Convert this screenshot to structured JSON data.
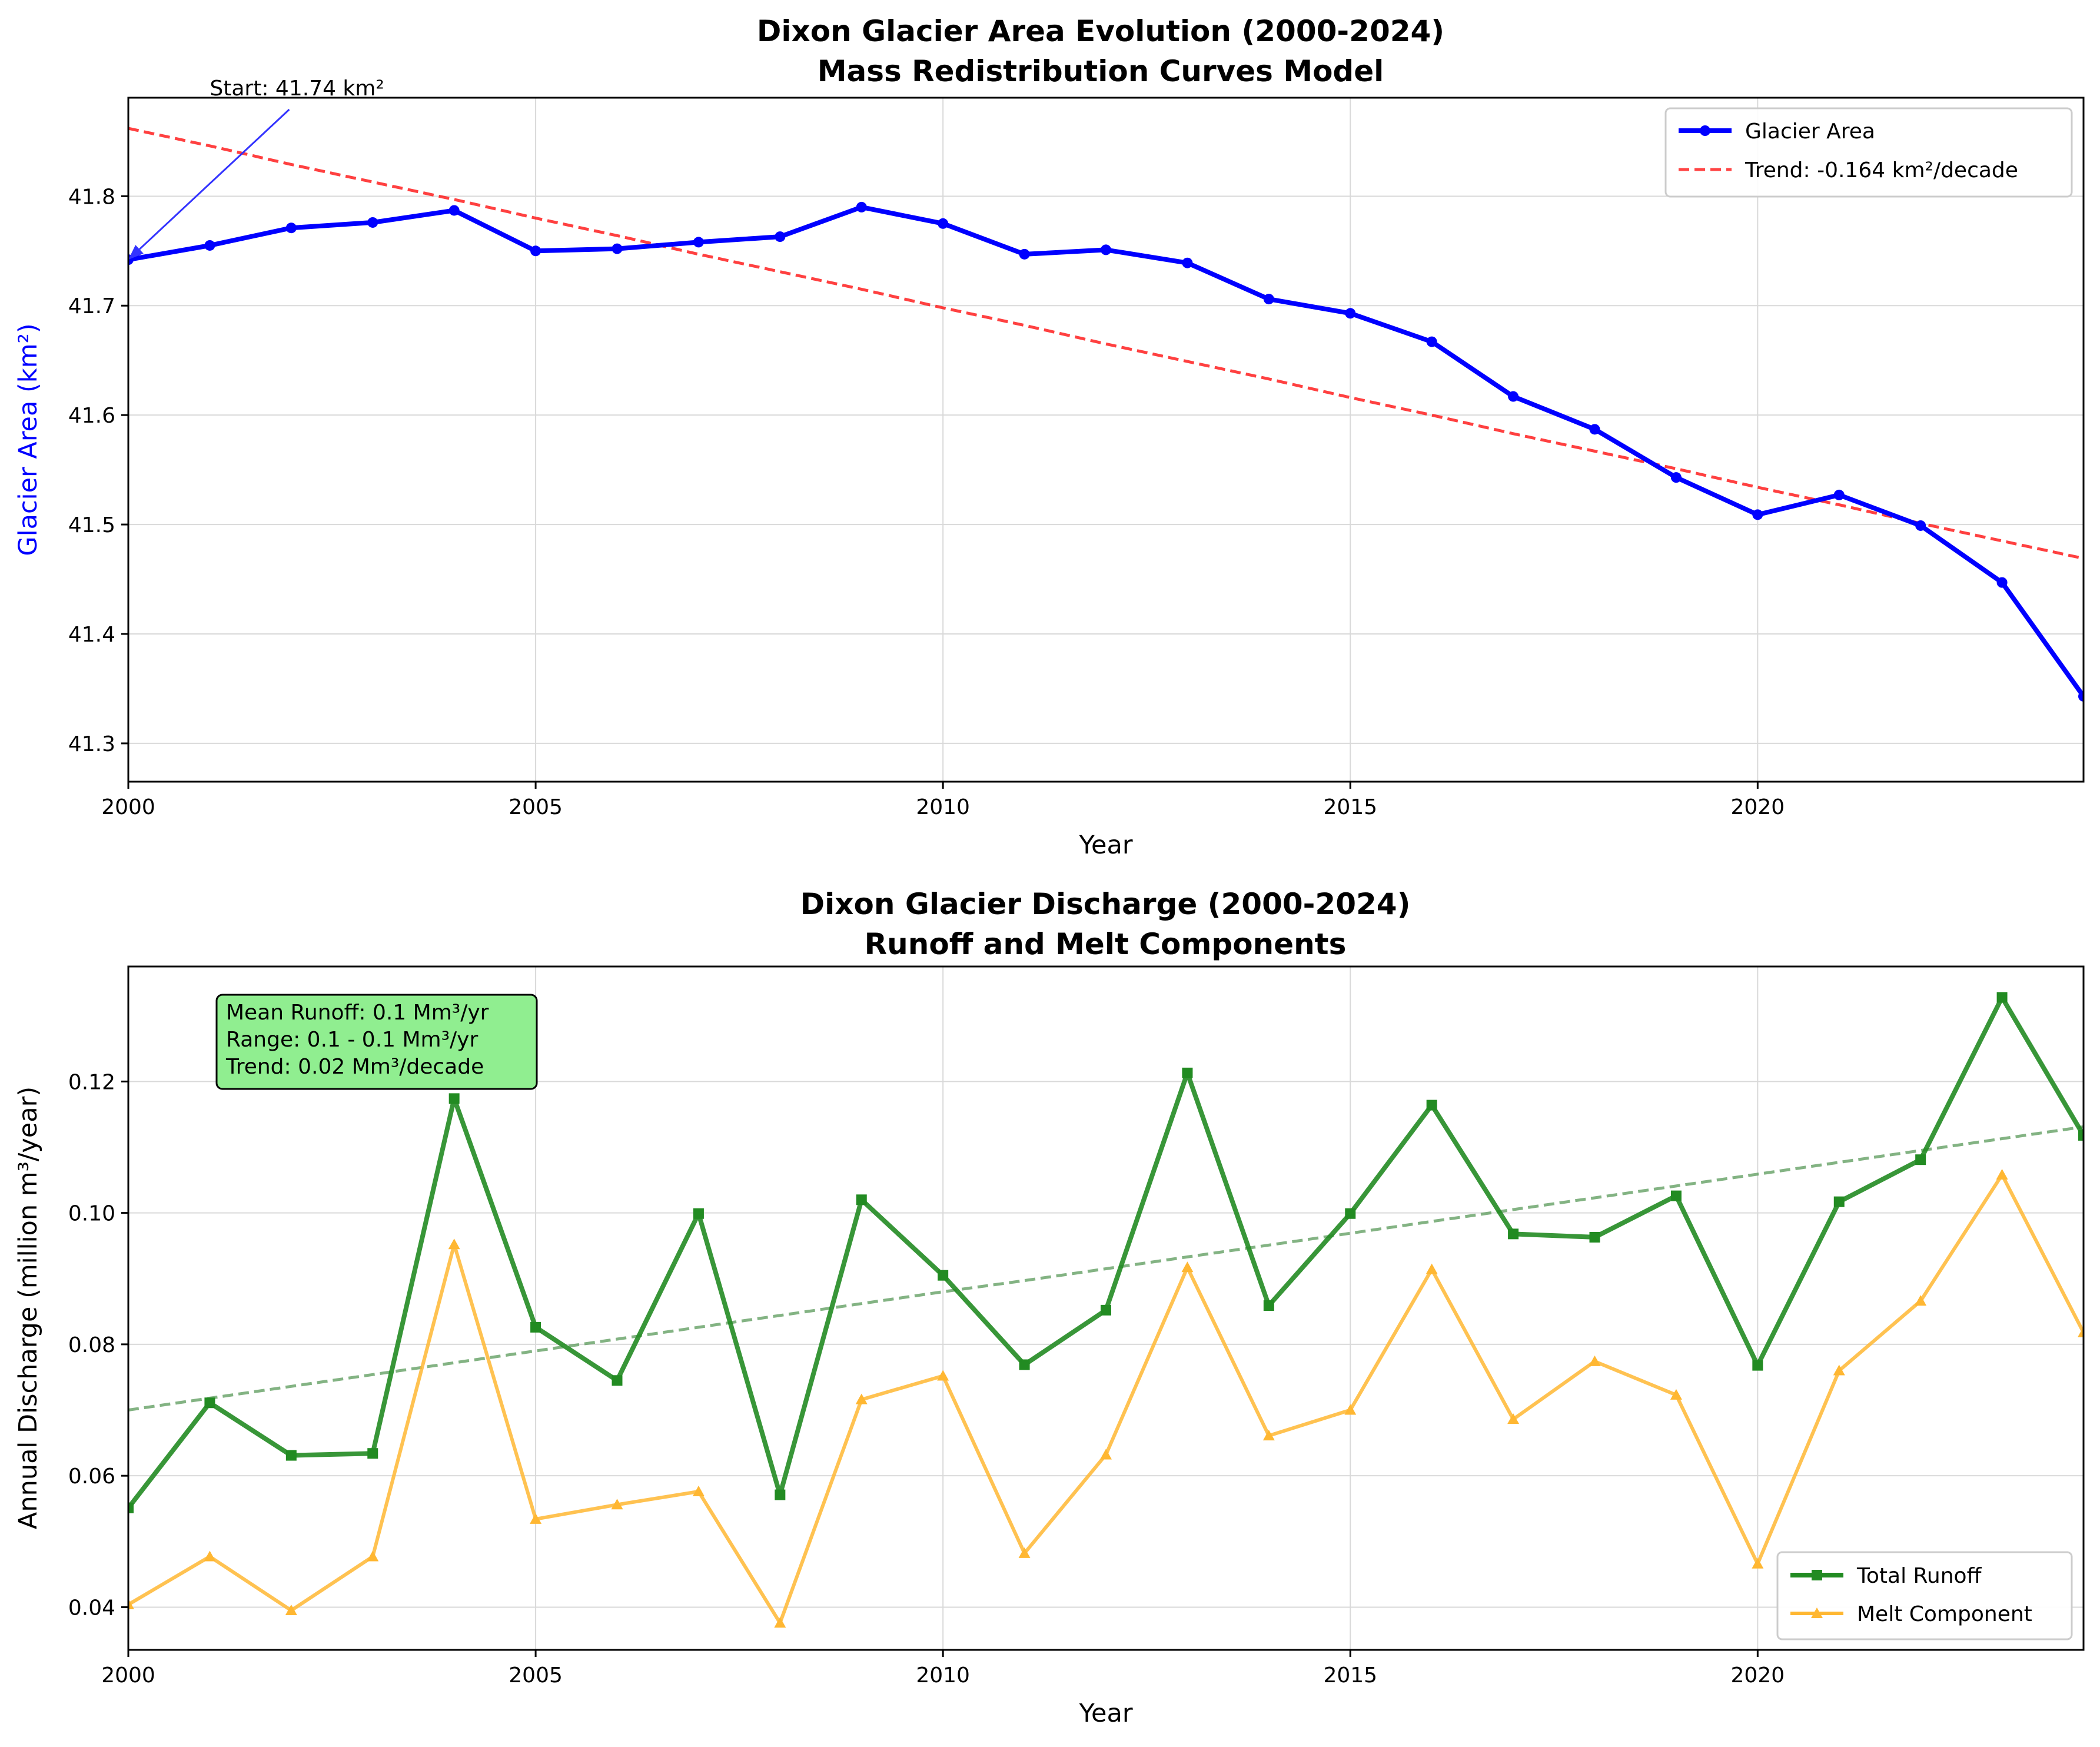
{
  "chart_data": [
    {
      "type": "line",
      "title": "Dixon Glacier Area Evolution (2000-2024)",
      "subtitle": "Mass Redistribution Curves Model",
      "xlabel": "Year",
      "ylabel": "Glacier Area (km²)",
      "xlim": [
        2000,
        2024
      ],
      "ylim": [
        41.265,
        41.89
      ],
      "x_ticks": [
        "2000",
        "2005",
        "2010",
        "2015",
        "2020"
      ],
      "y_ticks": [
        "41.3",
        "41.4",
        "41.5",
        "41.6",
        "41.7",
        "41.8"
      ],
      "grid": true,
      "legend_position": "top-right",
      "x": [
        2000,
        2001,
        2002,
        2003,
        2004,
        2005,
        2006,
        2007,
        2008,
        2009,
        2010,
        2011,
        2012,
        2013,
        2014,
        2015,
        2016,
        2017,
        2018,
        2019,
        2020,
        2021,
        2022,
        2023,
        2024
      ],
      "series": [
        {
          "name": "Glacier Area",
          "color": "#0000ff",
          "style": "solid-circle-markers",
          "values": [
            41.742,
            41.755,
            41.771,
            41.776,
            41.787,
            41.75,
            41.752,
            41.758,
            41.763,
            41.79,
            41.775,
            41.747,
            41.751,
            41.739,
            41.706,
            41.693,
            41.667,
            41.617,
            41.587,
            41.543,
            41.509,
            41.527,
            41.499,
            41.447,
            41.343
          ]
        },
        {
          "name": "Trend: -0.164 km²/decade",
          "color": "#ff0000",
          "style": "dashed",
          "values": [
            41.862,
            41.846,
            41.829,
            41.813,
            41.797,
            41.78,
            41.764,
            41.747,
            41.731,
            41.715,
            41.698,
            41.682,
            41.665,
            41.649,
            41.633,
            41.616,
            41.6,
            41.583,
            41.567,
            41.551,
            41.534,
            41.518,
            41.501,
            41.485,
            41.469
          ]
        }
      ],
      "annotations": [
        {
          "text": "Start: 41.74 km²",
          "x": 2000,
          "y": 41.742,
          "text_x": 2001,
          "text_y": 41.89,
          "arrow_color": "#3333ff"
        }
      ]
    },
    {
      "type": "line",
      "title": "Dixon Glacier Discharge (2000-2024)",
      "subtitle": "Runoff and Melt Components",
      "xlabel": "Year",
      "ylabel": "Annual Discharge (million m³/year)",
      "xlim": [
        2000,
        2024
      ],
      "ylim": [
        0.0335,
        0.1375
      ],
      "x_ticks": [
        "2000",
        "2005",
        "2010",
        "2015",
        "2020"
      ],
      "y_ticks": [
        "0.04",
        "0.06",
        "0.08",
        "0.10",
        "0.12"
      ],
      "grid": true,
      "legend_position": "bottom-right",
      "x": [
        2000,
        2001,
        2002,
        2003,
        2004,
        2005,
        2006,
        2007,
        2008,
        2009,
        2010,
        2011,
        2012,
        2013,
        2014,
        2015,
        2016,
        2017,
        2018,
        2019,
        2020,
        2021,
        2022,
        2023,
        2024
      ],
      "series": [
        {
          "name": "Total Runoff",
          "color": "#228b22",
          "style": "solid-square-markers",
          "values": [
            0.0551,
            0.0711,
            0.0631,
            0.0634,
            0.1174,
            0.0826,
            0.0745,
            0.0999,
            0.0571,
            0.102,
            0.0905,
            0.0769,
            0.0852,
            0.1213,
            0.0859,
            0.0999,
            0.1164,
            0.0968,
            0.0963,
            0.1026,
            0.0768,
            0.1017,
            0.1081,
            0.1328,
            0.1118
          ]
        },
        {
          "name": "Melt Component",
          "color": "#ffb732",
          "style": "solid-triangle-markers",
          "values": [
            0.0404,
            0.0477,
            0.0395,
            0.0477,
            0.0952,
            0.0534,
            0.0556,
            0.0576,
            0.0376,
            0.0716,
            0.0752,
            0.0482,
            0.0632,
            0.0917,
            0.0661,
            0.07,
            0.0914,
            0.0686,
            0.0774,
            0.0723,
            0.0466,
            0.076,
            0.0866,
            0.1058,
            0.0818
          ]
        },
        {
          "name": "",
          "color": "#5a9a5a",
          "style": "dashed",
          "values": [
            0.07,
            0.0718,
            0.0736,
            0.0754,
            0.0772,
            0.079,
            0.0808,
            0.0826,
            0.0844,
            0.0862,
            0.088,
            0.0897,
            0.0915,
            0.0933,
            0.0951,
            0.0969,
            0.0987,
            0.1005,
            0.1023,
            0.1041,
            0.1059,
            0.1077,
            0.1095,
            0.1113,
            0.1131
          ]
        }
      ],
      "stats_box": {
        "lines": [
          "Mean Runoff: 0.1 Mm³/yr",
          "Range: 0.1 - 0.1 Mm³/yr",
          "Trend: 0.02 Mm³/decade"
        ],
        "background": "#90ee90"
      }
    }
  ]
}
